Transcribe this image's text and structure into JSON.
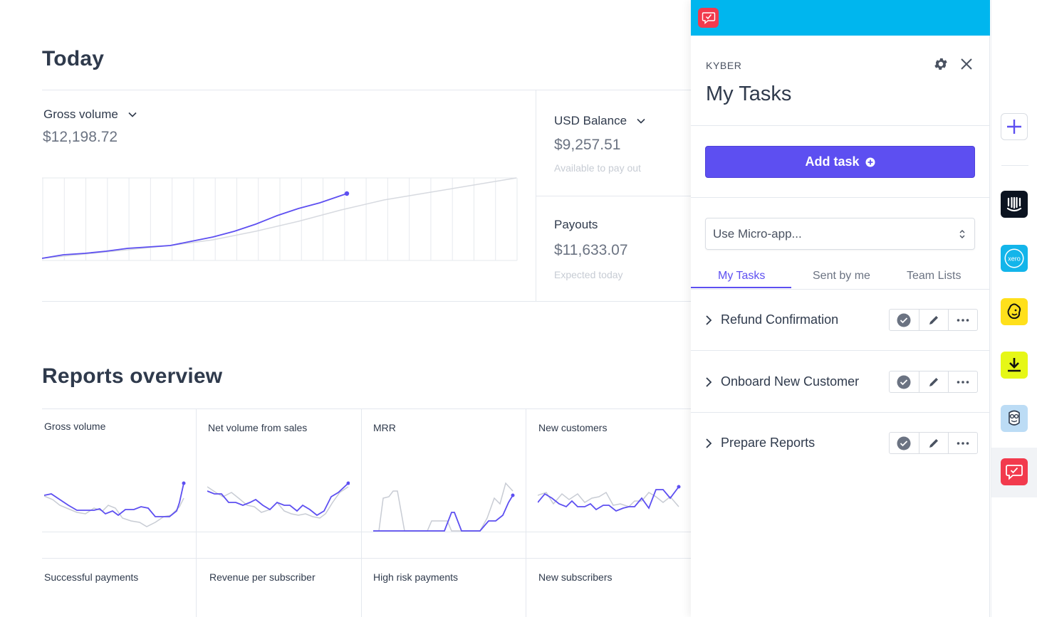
{
  "today": {
    "title": "Today",
    "gross": {
      "label": "Gross volume",
      "value": "$12,198.72"
    },
    "usd_balance": {
      "label": "USD Balance",
      "value": "$9,257.51",
      "sub": "Available to pay out"
    },
    "payouts": {
      "label": "Payouts",
      "value": "$11,633.07",
      "sub": "Expected today"
    }
  },
  "reports": {
    "title": "Reports overview",
    "cards": [
      {
        "label": "Gross volume"
      },
      {
        "label": "Net volume from sales"
      },
      {
        "label": "MRR"
      },
      {
        "label": "New customers"
      },
      {
        "label": "Successful payments"
      },
      {
        "label": "Revenue per subscriber"
      },
      {
        "label": "High risk payments"
      },
      {
        "label": "New subscribers"
      }
    ]
  },
  "panel": {
    "brand": "KYBER",
    "title": "My Tasks",
    "add_task_label": "Add task",
    "micro_app_select": "Use Micro-app...",
    "tabs": [
      {
        "label": "My Tasks",
        "active": true
      },
      {
        "label": "Sent by me",
        "active": false
      },
      {
        "label": "Team Lists",
        "active": false
      }
    ],
    "tasks": [
      {
        "name": "Refund Confirmation"
      },
      {
        "name": "Onboard New Customer"
      },
      {
        "name": "Prepare Reports"
      }
    ]
  },
  "rail": {
    "apps": [
      "add-app-icon",
      "intercom-icon",
      "xero-icon",
      "mailchimp-icon",
      "download-app-icon",
      "owl-app-icon",
      "kyber-icon"
    ],
    "xero_label": "xero"
  },
  "colors": {
    "accent": "#5d4ff1",
    "topbar": "#00b6ee",
    "kyber_red": "#f23a4d",
    "chart_primary": "#5d4ff1",
    "chart_compare": "#c8ccd4"
  }
}
